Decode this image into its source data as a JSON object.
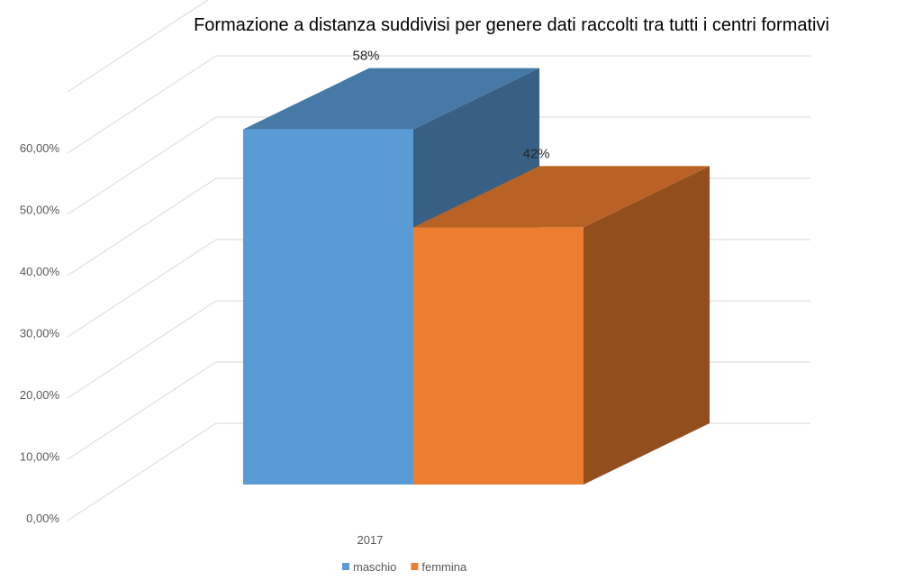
{
  "chart_data": {
    "type": "bar",
    "title": "Formazione a distanza suddivisi per genere dati raccolti tra tutti i centri formativi",
    "categories": [
      "2017"
    ],
    "series": [
      {
        "name": "maschio",
        "values": [
          0.58
        ],
        "data_label": "58%",
        "color": "#5B9BD5"
      },
      {
        "name": "femmina",
        "values": [
          0.42
        ],
        "data_label": "42%",
        "color": "#ED7D31"
      }
    ],
    "ylim": [
      0,
      0.6
    ],
    "yticks": [
      {
        "value": 0.0,
        "label": "0,00%"
      },
      {
        "value": 0.1,
        "label": "10,00%"
      },
      {
        "value": 0.2,
        "label": "20,00%"
      },
      {
        "value": 0.3,
        "label": "30,00%"
      },
      {
        "value": 0.4,
        "label": "40,00%"
      },
      {
        "value": 0.5,
        "label": "50,00%"
      },
      {
        "value": 0.6,
        "label": "60,00%"
      }
    ],
    "grid": true,
    "legend_position": "bottom",
    "style": "3d-column"
  }
}
